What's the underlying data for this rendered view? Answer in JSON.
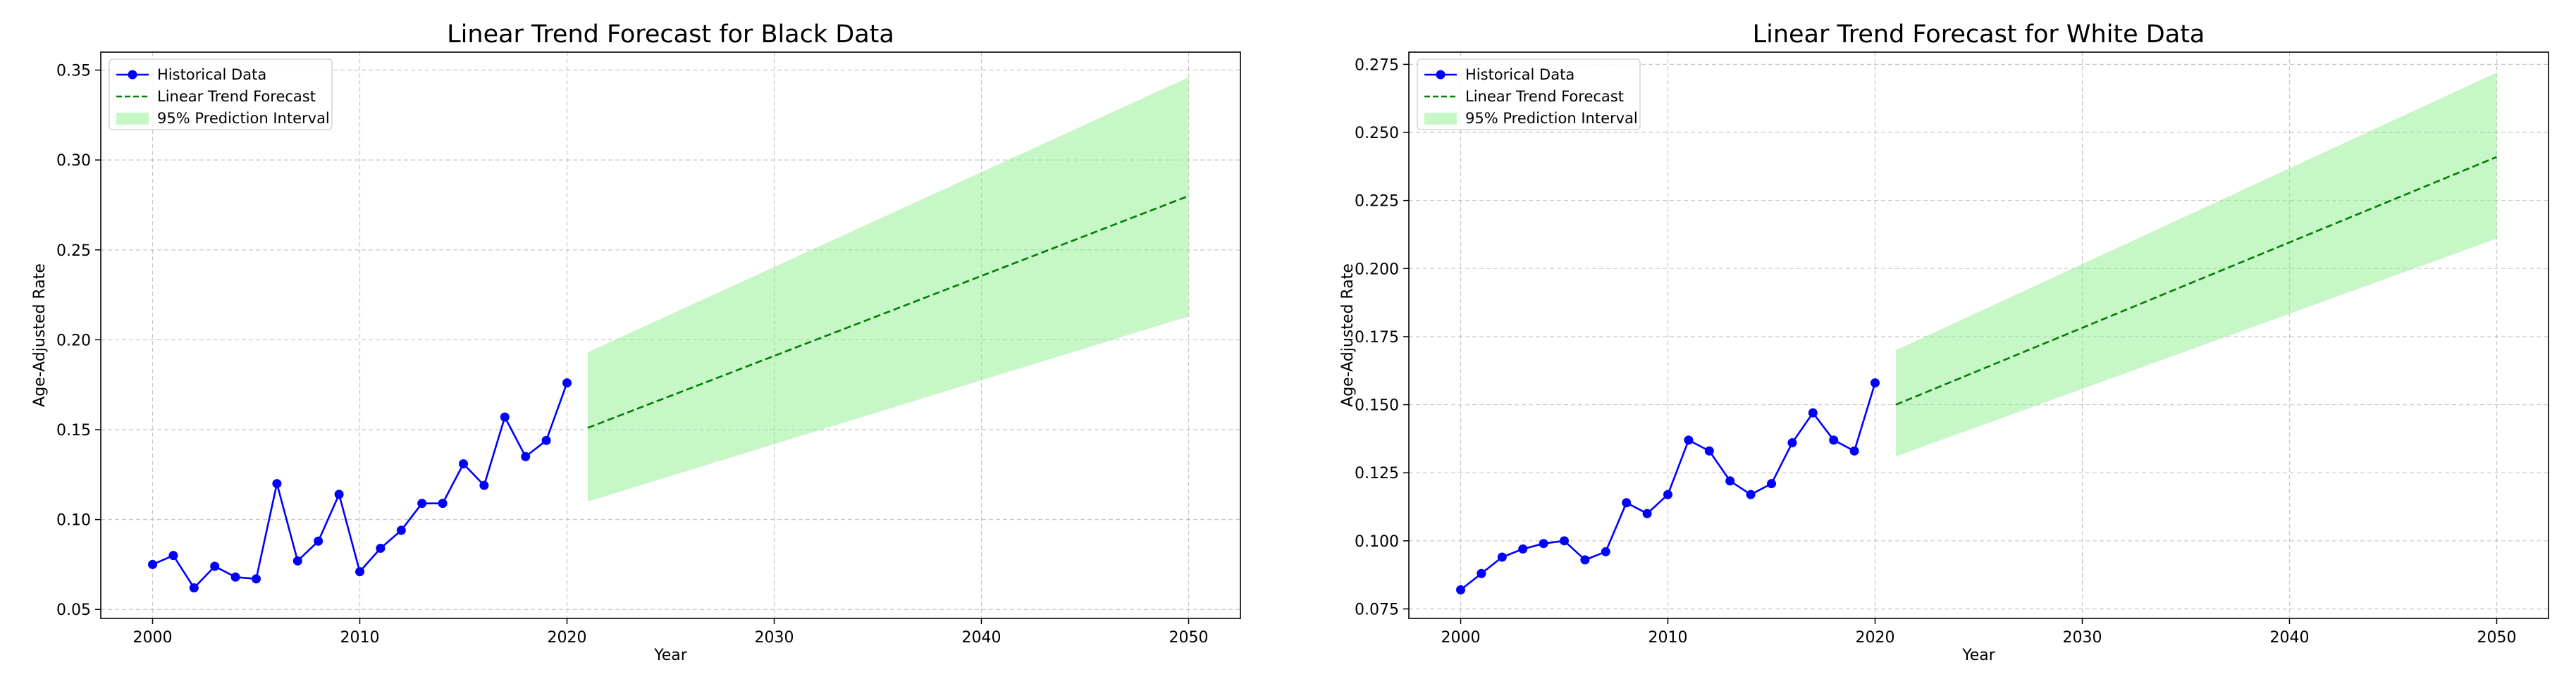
{
  "chart_data": [
    {
      "type": "line",
      "title": "Linear Trend Forecast for Black Data",
      "xlabel": "Year",
      "ylabel": "Age-Adjusted Rate",
      "xlim": [
        1997.5,
        2052.5
      ],
      "ylim": [
        0.045,
        0.36
      ],
      "xticks": [
        "2000",
        "2010",
        "2020",
        "2030",
        "2040",
        "2050"
      ],
      "yticks": [
        "0.05",
        "0.10",
        "0.15",
        "0.20",
        "0.25",
        "0.30",
        "0.35"
      ],
      "grid": true,
      "legend": "top-left",
      "legend_entries": [
        "Historical Data",
        "Linear Trend Forecast",
        "95% Prediction Interval"
      ],
      "series": [
        {
          "name": "Historical Data",
          "color": "#0000ff",
          "x": [
            2000,
            2001,
            2002,
            2003,
            2004,
            2005,
            2006,
            2007,
            2008,
            2009,
            2010,
            2011,
            2012,
            2013,
            2014,
            2015,
            2016,
            2017,
            2018,
            2019,
            2020
          ],
          "y": [
            0.075,
            0.08,
            0.062,
            0.074,
            0.068,
            0.067,
            0.12,
            0.077,
            0.088,
            0.114,
            0.071,
            0.084,
            0.094,
            0.109,
            0.109,
            0.131,
            0.119,
            0.157,
            0.135,
            0.144,
            0.176
          ]
        },
        {
          "name": "Linear Trend Forecast",
          "color": "#008000",
          "x": [
            2021,
            2050
          ],
          "y": [
            0.151,
            0.28
          ]
        },
        {
          "name": "95% Prediction Interval",
          "color": "#90ee90",
          "x": [
            2021,
            2050
          ],
          "lower": [
            0.11,
            0.213
          ],
          "upper": [
            0.193,
            0.346
          ]
        }
      ]
    },
    {
      "type": "line",
      "title": "Linear Trend Forecast for White Data",
      "xlabel": "Year",
      "ylabel": "Age-Adjusted Rate",
      "xlim": [
        1997.5,
        2052.5
      ],
      "ylim": [
        0.0715,
        0.2795
      ],
      "xticks": [
        "2000",
        "2010",
        "2020",
        "2030",
        "2040",
        "2050"
      ],
      "yticks": [
        "0.075",
        "0.100",
        "0.125",
        "0.150",
        "0.175",
        "0.200",
        "0.225",
        "0.250",
        "0.275"
      ],
      "grid": true,
      "legend": "top-left",
      "legend_entries": [
        "Historical Data",
        "Linear Trend Forecast",
        "95% Prediction Interval"
      ],
      "series": [
        {
          "name": "Historical Data",
          "color": "#0000ff",
          "x": [
            2000,
            2001,
            2002,
            2003,
            2004,
            2005,
            2006,
            2007,
            2008,
            2009,
            2010,
            2011,
            2012,
            2013,
            2014,
            2015,
            2016,
            2017,
            2018,
            2019,
            2020
          ],
          "y": [
            0.082,
            0.088,
            0.094,
            0.097,
            0.099,
            0.1,
            0.093,
            0.096,
            0.114,
            0.11,
            0.117,
            0.137,
            0.133,
            0.122,
            0.117,
            0.121,
            0.136,
            0.147,
            0.137,
            0.133,
            0.158
          ]
        },
        {
          "name": "Linear Trend Forecast",
          "color": "#008000",
          "x": [
            2021,
            2050
          ],
          "y": [
            0.15,
            0.241
          ]
        },
        {
          "name": "95% Prediction Interval",
          "color": "#90ee90",
          "x": [
            2021,
            2050
          ],
          "lower": [
            0.131,
            0.211
          ],
          "upper": [
            0.17,
            0.272
          ]
        }
      ]
    }
  ]
}
